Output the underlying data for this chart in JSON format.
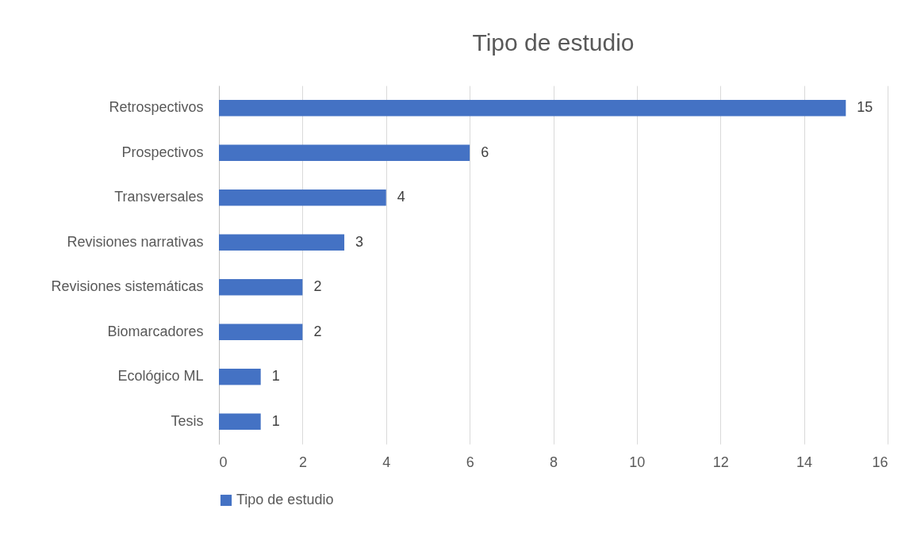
{
  "chart_data": {
    "type": "bar",
    "orientation": "horizontal",
    "title": "Tipo de estudio",
    "categories": [
      "Retrospectivos",
      "Prospectivos",
      "Transversales",
      "Revisiones narrativas",
      "Revisiones sistemáticas",
      "Biomarcadores",
      "Ecológico ML",
      "Tesis"
    ],
    "series": [
      {
        "name": "Tipo de estudio",
        "color": "#4472c4",
        "values": [
          15,
          6,
          4,
          3,
          2,
          2,
          1,
          1
        ]
      }
    ],
    "xlim": [
      0,
      16
    ],
    "xticks": [
      0,
      2,
      4,
      6,
      8,
      10,
      12,
      14,
      16
    ],
    "grid": "x",
    "legend": "bottom",
    "data_labels": true
  }
}
